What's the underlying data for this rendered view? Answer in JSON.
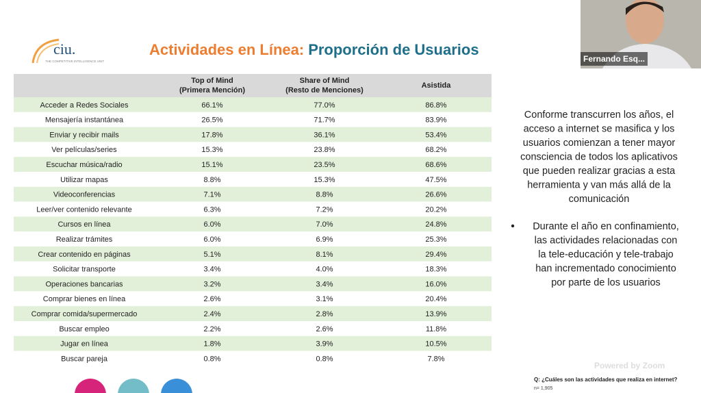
{
  "logo": {
    "mark": "ciu.",
    "tagline": "THE COMPETITIVE INTELLIGENCE UNIT"
  },
  "header": {
    "title_lead": "Actividades en Línea:",
    "title_rest": "Proporción de Usuarios"
  },
  "video": {
    "participant": "Fernando Esq..."
  },
  "table": {
    "columns": [
      [
        "Top of Mind",
        "(Primera Mención)"
      ],
      [
        "Share of Mind",
        "(Resto de Menciones)"
      ],
      [
        "Asistida"
      ]
    ],
    "rows": [
      [
        "Acceder a Redes Sociales",
        "66.1%",
        "77.0%",
        "86.8%"
      ],
      [
        "Mensajería instantánea",
        "26.5%",
        "71.7%",
        "83.9%"
      ],
      [
        "Enviar y recibir mails",
        "17.8%",
        "36.1%",
        "53.4%"
      ],
      [
        "Ver películas/series",
        "15.3%",
        "23.8%",
        "68.2%"
      ],
      [
        "Escuchar música/radio",
        "15.1%",
        "23.5%",
        "68.6%"
      ],
      [
        "Utilizar mapas",
        "8.8%",
        "15.3%",
        "47.5%"
      ],
      [
        "Videoconferencias",
        "7.1%",
        "8.8%",
        "26.6%"
      ],
      [
        "Leer/ver contenido relevante",
        "6.3%",
        "7.2%",
        "20.2%"
      ],
      [
        "Cursos en línea",
        "6.0%",
        "7.0%",
        "24.8%"
      ],
      [
        "Realizar trámites",
        "6.0%",
        "6.9%",
        "25.3%"
      ],
      [
        "Crear contenido en páginas",
        "5.1%",
        "8.1%",
        "29.4%"
      ],
      [
        "Solicitar transporte",
        "3.4%",
        "4.0%",
        "18.3%"
      ],
      [
        "Operaciones bancarias",
        "3.2%",
        "3.4%",
        "16.0%"
      ],
      [
        "Comprar bienes en línea",
        "2.6%",
        "3.1%",
        "20.4%"
      ],
      [
        "Comprar comida/supermercado",
        "2.4%",
        "2.8%",
        "13.9%"
      ],
      [
        "Buscar empleo",
        "2.2%",
        "2.6%",
        "11.8%"
      ],
      [
        "Jugar en línea",
        "1.8%",
        "3.9%",
        "10.5%"
      ],
      [
        "Buscar pareja",
        "0.8%",
        "0.8%",
        "7.8%"
      ]
    ]
  },
  "notes": {
    "paragraph": [
      "Conforme transcurren los años, el",
      "acceso a internet se masifica y los",
      "usuarios comienzan a tener mayor",
      "consciencia de todos los aplicativos",
      "que pueden realizar gracias a esta",
      "herramienta y van más allá de la",
      "comunicación"
    ],
    "bullet": [
      "Durante el año en confinamiento,",
      "las actividades relacionadas con",
      "la tele-educación y tele-trabajo",
      "han incrementado conocimiento",
      "por parte de los usuarios"
    ]
  },
  "watermark": "Powered by Zoom",
  "footer": {
    "question": "Q:  ¿Cuáles son las actividades que realiza en internet?",
    "sample": "n= 1,905"
  }
}
